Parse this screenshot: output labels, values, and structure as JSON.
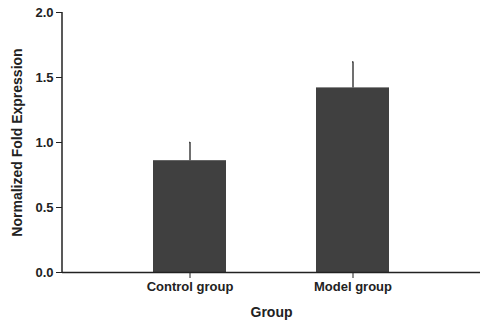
{
  "chart_data": {
    "type": "bar",
    "x_label": "Group",
    "y_label": "Normalized Fold Expression",
    "categories": [
      "Control group",
      "Model group"
    ],
    "values": [
      0.86,
      1.42
    ],
    "errors": [
      0.14,
      0.2
    ],
    "color": "#404040",
    "ylim": [
      0,
      2
    ],
    "yticks": [
      {
        "value": 0,
        "label": "0.0"
      },
      {
        "value": 0.5,
        "label": "0.5"
      },
      {
        "value": 1,
        "label": "1.0"
      },
      {
        "value": 1.5,
        "label": "1.5"
      },
      {
        "value": 2,
        "label": "2.0"
      }
    ],
    "grid": false
  }
}
